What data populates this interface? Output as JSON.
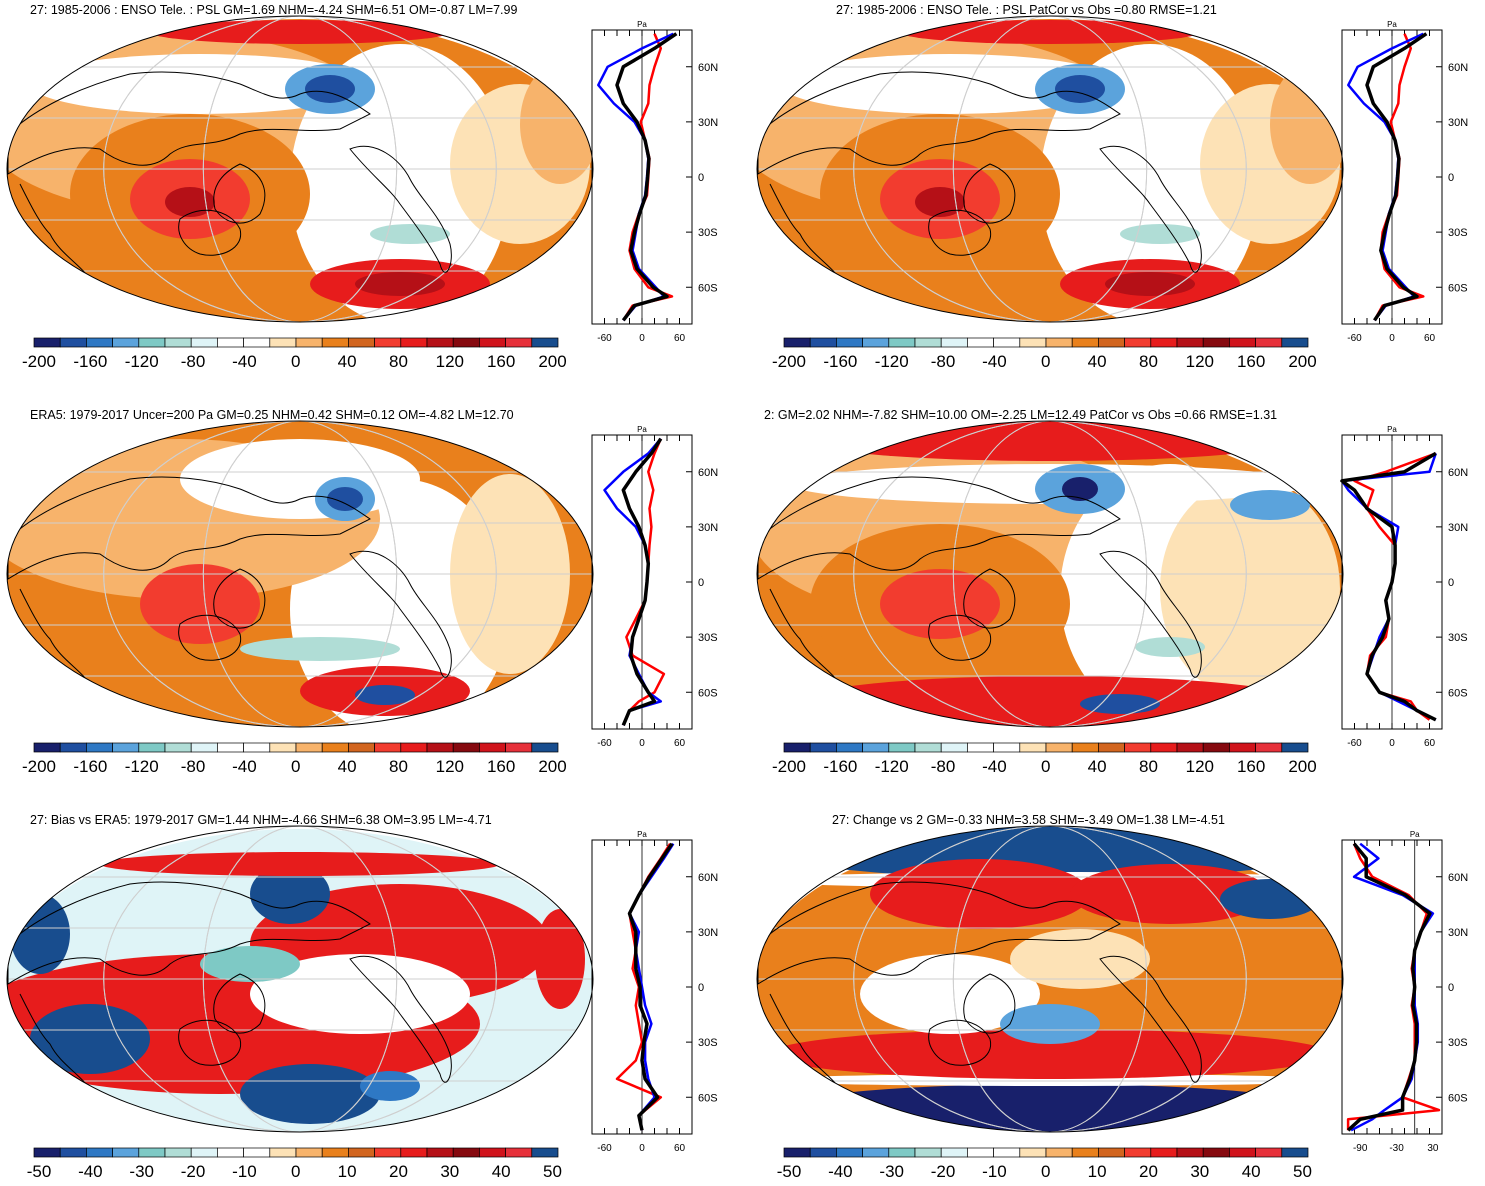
{
  "colors": {
    "palette": [
      "#18206b",
      "#1f4fa0",
      "#2e78c4",
      "#5ba3dc",
      "#7ec9c5",
      "#b0ddd6",
      "#dff4f7",
      "#ffffff",
      "#ffffff",
      "#fde2b6",
      "#f7b36b",
      "#e9801c",
      "#d2651f",
      "#f23c2f",
      "#e71c1c",
      "#b51017",
      "#86090f",
      "#d0131b",
      "#e6303a",
      "#184d8e"
    ],
    "land": "#000000",
    "grid": "#cfcfcf",
    "model_line": "#ff0000",
    "obs_line": "#0000ff",
    "mean_line": "#000000"
  },
  "chart_data": [
    {
      "id": "p1",
      "type": "heatmap",
      "title": "27: 1985-2006 : ENSO Tele. : PSL GM=1.69 NHM=-4.24 SHM=6.51 OM=-0.87 LM=7.99",
      "colorbar_labels": [
        "-200",
        "-160",
        "-120",
        "-80",
        "-40",
        "0",
        "40",
        "80",
        "120",
        "160",
        "200"
      ],
      "profile": {
        "unit": "Pa",
        "x_ticks": [
          "-60",
          "0",
          "60"
        ],
        "x_range": [
          -80,
          80
        ],
        "y_ticks": [
          "60N",
          "30N",
          "0",
          "30S",
          "60S"
        ],
        "y_values": [
          60,
          30,
          0,
          -30,
          -60
        ],
        "y_range": [
          -80,
          80
        ],
        "lat": [
          -78,
          -70,
          -65,
          -60,
          -50,
          -40,
          -30,
          -20,
          -10,
          0,
          10,
          20,
          30,
          40,
          50,
          60,
          70,
          78
        ],
        "series": [
          {
            "name": "model",
            "values": [
              -30,
              -15,
              48,
              10,
              -12,
              -20,
              -15,
              -5,
              8,
              10,
              12,
              5,
              -2,
              10,
              12,
              20,
              30,
              20
            ]
          },
          {
            "name": "obs",
            "values": [
              -30,
              -10,
              35,
              22,
              -5,
              -15,
              -10,
              -5,
              5,
              8,
              10,
              5,
              -12,
              -45,
              -70,
              -55,
              0,
              50
            ]
          },
          {
            "name": "mean",
            "values": [
              -30,
              -12,
              40,
              18,
              -8,
              -18,
              -12,
              -4,
              6,
              9,
              11,
              5,
              -8,
              -30,
              -40,
              -30,
              20,
              55
            ]
          }
        ]
      }
    },
    {
      "id": "p2",
      "type": "heatmap",
      "title": "27: 1985-2006 : ENSO Tele. : PSL PatCor vs Obs =0.80 RMSE=1.21",
      "colorbar_labels": [
        "-200",
        "-160",
        "-120",
        "-80",
        "-40",
        "0",
        "40",
        "80",
        "120",
        "160",
        "200"
      ],
      "profile": {
        "unit": "Pa",
        "x_ticks": [
          "-60",
          "0",
          "60"
        ],
        "x_range": [
          -80,
          80
        ],
        "y_ticks": [
          "60N",
          "30N",
          "0",
          "30S",
          "60S"
        ],
        "y_values": [
          60,
          30,
          0,
          -30,
          -60
        ],
        "y_range": [
          -80,
          80
        ],
        "lat": [
          -78,
          -70,
          -65,
          -60,
          -50,
          -40,
          -30,
          -20,
          -10,
          0,
          10,
          20,
          30,
          40,
          50,
          60,
          70,
          78
        ],
        "series": [
          {
            "name": "model",
            "values": [
              -28,
              -15,
              50,
              12,
              -12,
              -18,
              -15,
              -5,
              8,
              10,
              12,
              5,
              -2,
              10,
              12,
              20,
              30,
              20
            ]
          },
          {
            "name": "obs",
            "values": [
              -28,
              -10,
              35,
              22,
              -5,
              -15,
              -10,
              -5,
              5,
              8,
              10,
              5,
              -12,
              -45,
              -70,
              -55,
              0,
              50
            ]
          },
          {
            "name": "mean",
            "values": [
              -28,
              -12,
              40,
              18,
              -8,
              -18,
              -12,
              -4,
              6,
              9,
              11,
              5,
              -8,
              -30,
              -40,
              -30,
              20,
              55
            ]
          }
        ]
      }
    },
    {
      "id": "p3",
      "type": "heatmap",
      "title": "ERA5: 1979-2017 Uncer=200 Pa GM=0.25 NHM=0.42 SHM=0.12 OM=-4.82 LM=12.70",
      "colorbar_labels": [
        "-200",
        "-160",
        "-120",
        "-80",
        "-40",
        "0",
        "40",
        "80",
        "120",
        "160",
        "200"
      ],
      "profile": {
        "unit": "Pa",
        "x_ticks": [
          "-60",
          "0",
          "60"
        ],
        "x_range": [
          -80,
          80
        ],
        "y_ticks": [
          "60N",
          "30N",
          "0",
          "30S",
          "60S"
        ],
        "y_values": [
          60,
          30,
          0,
          -30,
          -60
        ],
        "y_range": [
          -80,
          80
        ],
        "lat": [
          -78,
          -70,
          -65,
          -60,
          -50,
          -40,
          -30,
          -20,
          -10,
          0,
          10,
          20,
          30,
          40,
          50,
          60,
          70,
          78
        ],
        "series": [
          {
            "name": "model",
            "values": [
              -30,
              -20,
              -5,
              20,
              35,
              -15,
              -25,
              -10,
              5,
              8,
              10,
              12,
              15,
              12,
              18,
              10,
              20,
              30
            ]
          },
          {
            "name": "obs",
            "values": [
              -30,
              -20,
              30,
              10,
              -5,
              -20,
              -15,
              -5,
              5,
              8,
              10,
              5,
              -10,
              -40,
              -60,
              -30,
              10,
              30
            ]
          },
          {
            "name": "mean",
            "values": [
              -30,
              -20,
              20,
              10,
              -8,
              -18,
              -15,
              -5,
              5,
              8,
              10,
              5,
              -5,
              -20,
              -30,
              -10,
              15,
              30
            ]
          }
        ]
      }
    },
    {
      "id": "p4",
      "type": "heatmap",
      "title": "2: GM=2.02 NHM=-7.82 SHM=10.00 OM=-2.25 LM=12.49 PatCor vs Obs =0.66 RMSE=1.31",
      "colorbar_labels": [
        "-200",
        "-160",
        "-120",
        "-80",
        "-40",
        "0",
        "40",
        "80",
        "120",
        "160",
        "200"
      ],
      "profile": {
        "unit": "Pa",
        "x_ticks": [
          "-60",
          "0",
          "60"
        ],
        "x_range": [
          -80,
          80
        ],
        "y_ticks": [
          "60N",
          "30N",
          "0",
          "30S",
          "60S"
        ],
        "y_values": [
          60,
          30,
          0,
          -30,
          -60
        ],
        "y_range": [
          -80,
          80
        ],
        "lat": [
          -75,
          -70,
          -65,
          -60,
          -50,
          -40,
          -30,
          -20,
          -10,
          0,
          10,
          20,
          30,
          40,
          50,
          55,
          60,
          70
        ],
        "series": [
          {
            "name": "model",
            "values": [
              60,
              40,
              30,
              -20,
              -40,
              -35,
              -10,
              -5,
              -10,
              0,
              5,
              5,
              -20,
              -40,
              -30,
              -60,
              -10,
              70
            ]
          },
          {
            "name": "obs",
            "values": [
              70,
              40,
              10,
              -20,
              -40,
              -30,
              -20,
              -5,
              -10,
              0,
              5,
              5,
              10,
              -40,
              -70,
              -95,
              60,
              70
            ]
          },
          {
            "name": "mean",
            "values": [
              70,
              40,
              20,
              -20,
              -40,
              -32,
              -15,
              -5,
              -10,
              0,
              5,
              5,
              0,
              -40,
              -60,
              -80,
              20,
              70
            ]
          }
        ]
      }
    },
    {
      "id": "p5",
      "type": "heatmap",
      "title": "27: Bias vs ERA5: 1979-2017 GM=1.44 NHM=-4.66 SHM=6.38 OM=3.95 LM=-4.71",
      "colorbar_labels": [
        "-50",
        "-40",
        "-30",
        "-20",
        "-10",
        "0",
        "10",
        "20",
        "30",
        "40",
        "50"
      ],
      "profile": {
        "unit": "Pa",
        "x_ticks": [
          "-60",
          "0",
          "60"
        ],
        "x_range": [
          -80,
          80
        ],
        "y_ticks": [
          "60N",
          "30N",
          "0",
          "30S",
          "60S"
        ],
        "y_values": [
          60,
          30,
          0,
          -30,
          -60
        ],
        "y_range": [
          -80,
          80
        ],
        "lat": [
          -78,
          -70,
          -60,
          -50,
          -40,
          -30,
          -20,
          -10,
          0,
          10,
          20,
          30,
          40,
          50,
          60,
          70,
          78
        ],
        "series": [
          {
            "name": "model",
            "values": [
              0,
              -5,
              30,
              -40,
              -10,
              0,
              -5,
              -10,
              -5,
              -15,
              -10,
              -15,
              -20,
              -5,
              10,
              30,
              45
            ]
          },
          {
            "name": "obs",
            "values": [
              0,
              -5,
              20,
              10,
              5,
              5,
              15,
              5,
              0,
              -5,
              -10,
              -5,
              -20,
              -5,
              15,
              35,
              50
            ]
          },
          {
            "name": "mean",
            "values": [
              0,
              -5,
              25,
              5,
              0,
              3,
              8,
              -3,
              -3,
              -10,
              -10,
              -10,
              -20,
              -5,
              12,
              32,
              48
            ]
          }
        ]
      }
    },
    {
      "id": "p6",
      "type": "heatmap",
      "title": "27: Change vs 2 GM=-0.33 NHM=3.58 SHM=-3.49 OM=1.38 LM=-4.51",
      "colorbar_labels": [
        "-50",
        "-40",
        "-30",
        "-20",
        "-10",
        "0",
        "10",
        "20",
        "30",
        "40",
        "50"
      ],
      "profile": {
        "unit": "Pa",
        "x_ticks": [
          "-90",
          "-30",
          "30"
        ],
        "x_range": [
          -120,
          45
        ],
        "y_ticks": [
          "60N",
          "30N",
          "0",
          "30S",
          "60S"
        ],
        "y_values": [
          60,
          30,
          0,
          -30,
          -60
        ],
        "y_range": [
          -80,
          80
        ],
        "lat": [
          -78,
          -72,
          -67,
          -60,
          -50,
          -40,
          -30,
          -20,
          -10,
          0,
          10,
          20,
          30,
          40,
          50,
          60,
          70,
          78
        ],
        "series": [
          {
            "name": "model",
            "values": [
              -110,
              -110,
              40,
              -20,
              -10,
              0,
              0,
              0,
              -5,
              0,
              -5,
              0,
              10,
              20,
              -10,
              -70,
              -90,
              -100
            ]
          },
          {
            "name": "obs",
            "values": [
              -105,
              -70,
              -50,
              -20,
              -5,
              0,
              5,
              5,
              0,
              0,
              0,
              0,
              10,
              30,
              -20,
              -100,
              -60,
              -90
            ]
          },
          {
            "name": "mean",
            "values": [
              -110,
              -90,
              -20,
              -20,
              -8,
              0,
              3,
              3,
              -3,
              0,
              -3,
              0,
              10,
              25,
              -15,
              -80,
              -80,
              -100
            ]
          }
        ]
      }
    }
  ]
}
